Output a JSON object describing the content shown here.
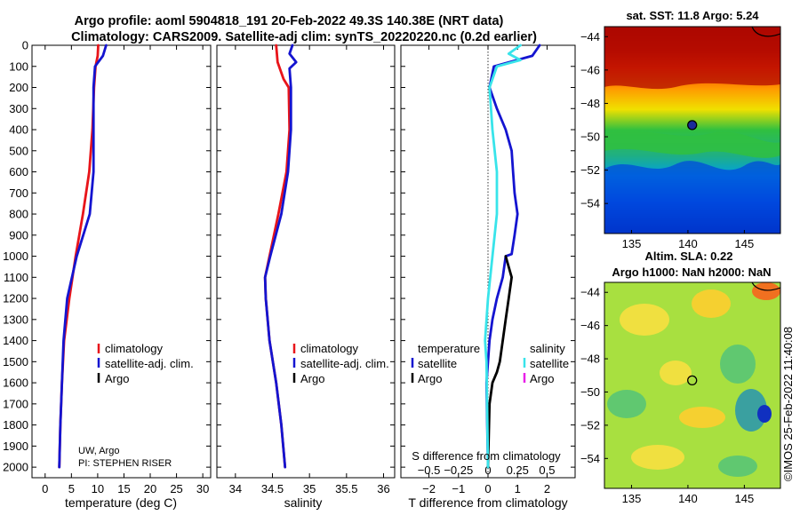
{
  "header": {
    "title1": "Argo profile: aoml 5904818_191 20-Feb-2022 49.3S 140.38E (NRT data)",
    "title2": "Climatology: CARS2009. Satellite-adj clim: synTS_20220220.nc (0.2d earlier)"
  },
  "colors": {
    "climatology": "#e8141a",
    "satellite": "#1414d0",
    "argo": "#000000",
    "sat_salinity": "#38e4ea",
    "argo_salinity": "#e820e8"
  },
  "chart_data": [
    {
      "type": "line",
      "title": "",
      "xlabel": "temperature (deg C)",
      "ylabel": "",
      "xlim": [
        -2.5,
        31.5
      ],
      "ylim": [
        2050,
        0
      ],
      "xticks": [
        0,
        5,
        10,
        15,
        20,
        25,
        30
      ],
      "yticks": [
        0,
        100,
        200,
        300,
        400,
        500,
        600,
        700,
        800,
        900,
        1000,
        1100,
        1200,
        1300,
        1400,
        1500,
        1600,
        1700,
        1800,
        1900,
        2000
      ],
      "legend": [
        "climatology",
        "satellite-adj. clim.",
        "Argo"
      ],
      "credit": [
        "UW, Argo",
        "PI: STEPHEN RISER"
      ],
      "series": [
        {
          "name": "climatology",
          "color": "#e8141a",
          "points": [
            [
              10.1,
              0
            ],
            [
              10.0,
              50
            ],
            [
              9.6,
              100
            ],
            [
              9.3,
              200
            ],
            [
              9.0,
              400
            ],
            [
              8.4,
              600
            ],
            [
              7.2,
              800
            ],
            [
              5.8,
              1000
            ],
            [
              4.6,
              1200
            ],
            [
              3.6,
              1400
            ],
            [
              3.2,
              1600
            ],
            [
              2.9,
              1800
            ],
            [
              2.7,
              2000
            ]
          ]
        },
        {
          "name": "satellite-adj. clim.",
          "color": "#1414d0",
          "points": [
            [
              11.6,
              0
            ],
            [
              11.0,
              50
            ],
            [
              9.5,
              100
            ],
            [
              9.2,
              200
            ],
            [
              9.2,
              400
            ],
            [
              9.2,
              600
            ],
            [
              8.5,
              800
            ],
            [
              6.0,
              1000
            ],
            [
              4.2,
              1200
            ],
            [
              3.5,
              1400
            ],
            [
              3.2,
              1600
            ],
            [
              2.9,
              1800
            ],
            [
              2.7,
              2000
            ]
          ]
        },
        {
          "name": "Argo",
          "color": "#000000",
          "points": []
        }
      ]
    },
    {
      "type": "line",
      "xlabel": "salinity",
      "xlim": [
        33.75,
        36.15
      ],
      "ylim": [
        2050,
        0
      ],
      "xticks": [
        34,
        34.5,
        35,
        35.5,
        36
      ],
      "legend": [
        "climatology",
        "satellite-adj. clim.",
        "Argo"
      ],
      "series": [
        {
          "name": "climatology",
          "color": "#e8141a",
          "points": [
            [
              34.55,
              0
            ],
            [
              34.57,
              80
            ],
            [
              34.65,
              160
            ],
            [
              34.72,
              200
            ],
            [
              34.73,
              400
            ],
            [
              34.69,
              600
            ],
            [
              34.58,
              800
            ],
            [
              34.46,
              1000
            ],
            [
              34.4,
              1100
            ],
            [
              34.41,
              1200
            ],
            [
              34.46,
              1400
            ],
            [
              34.55,
              1600
            ],
            [
              34.62,
              1800
            ],
            [
              34.67,
              2000
            ]
          ]
        },
        {
          "name": "satellite-adj. clim.",
          "color": "#1414d0",
          "points": [
            [
              34.77,
              0
            ],
            [
              34.73,
              40
            ],
            [
              34.82,
              80
            ],
            [
              34.73,
              110
            ],
            [
              34.75,
              200
            ],
            [
              34.75,
              400
            ],
            [
              34.71,
              600
            ],
            [
              34.62,
              800
            ],
            [
              34.47,
              1000
            ],
            [
              34.4,
              1100
            ],
            [
              34.41,
              1200
            ],
            [
              34.46,
              1400
            ],
            [
              34.55,
              1600
            ],
            [
              34.62,
              1800
            ],
            [
              34.67,
              2000
            ]
          ]
        },
        {
          "name": "Argo",
          "color": "#000000",
          "points": []
        }
      ]
    },
    {
      "type": "line",
      "xlabel": "T difference from climatology",
      "xlabel_top": "S difference from climatology",
      "xlim": [
        -2.95,
        2.95
      ],
      "ylim": [
        2050,
        0
      ],
      "xticks": [
        -2,
        -1,
        0,
        1,
        2
      ],
      "xticks_top": [
        -0.5,
        -0.25,
        0,
        0.25,
        0.5
      ],
      "legend_groups": [
        {
          "title": "temperature",
          "items": [
            "satellite",
            "Argo"
          ]
        },
        {
          "title": "salinity",
          "items": [
            "satellite",
            "Argo"
          ]
        }
      ],
      "series": [
        {
          "name": "temperature satellite",
          "color": "#1414d0",
          "points": [
            [
              1.75,
              0
            ],
            [
              1.5,
              50
            ],
            [
              0.2,
              100
            ],
            [
              0.05,
              200
            ],
            [
              0.3,
              300
            ],
            [
              0.6,
              400
            ],
            [
              0.8,
              500
            ],
            [
              0.85,
              600
            ],
            [
              0.9,
              700
            ],
            [
              1.0,
              800
            ],
            [
              0.9,
              900
            ],
            [
              0.8,
              990
            ],
            [
              0.6,
              1000
            ],
            [
              0.5,
              1100
            ],
            [
              0.3,
              1200
            ],
            [
              0.15,
              1300
            ],
            [
              0.05,
              1400
            ],
            [
              0.0,
              1500
            ],
            [
              -0.05,
              1600
            ],
            [
              0.0,
              2000
            ]
          ]
        },
        {
          "name": "temperature Argo",
          "color": "#000000",
          "points": [
            [
              0.6,
              1000
            ],
            [
              0.8,
              1100
            ],
            [
              0.7,
              1200
            ],
            [
              0.6,
              1300
            ],
            [
              0.5,
              1400
            ],
            [
              0.4,
              1500
            ],
            [
              0.3,
              1550
            ],
            [
              0.15,
              1600
            ],
            [
              0.05,
              1700
            ],
            [
              0.0,
              2000
            ]
          ]
        },
        {
          "name": "salinity satellite",
          "color": "#38e4ea",
          "points": [
            [
              1.1,
              0
            ],
            [
              0.7,
              40
            ],
            [
              1.1,
              70
            ],
            [
              0.3,
              100
            ],
            [
              0.05,
              200
            ],
            [
              0.15,
              400
            ],
            [
              0.3,
              600
            ],
            [
              0.3,
              800
            ],
            [
              0.15,
              1000
            ],
            [
              0.0,
              1200
            ],
            [
              -0.1,
              1400
            ],
            [
              -0.05,
              1500
            ],
            [
              0.0,
              2000
            ]
          ]
        },
        {
          "name": "salinity Argo",
          "color": "#e820e8",
          "points": []
        }
      ]
    },
    {
      "type": "heatmap",
      "title": "sat. SST: 11.8 Argo: 5.24",
      "xlim": [
        132.6,
        148.2
      ],
      "ylim": [
        -55.8,
        -43.4
      ],
      "xticks": [
        135,
        140,
        145
      ],
      "yticks": [
        -44,
        -46,
        -48,
        -50,
        -52,
        -54
      ],
      "marker": [
        140.38,
        -49.3
      ]
    },
    {
      "type": "heatmap",
      "title": "Altim. SLA: 0.22",
      "subtitle": "Argo h1000: NaN h2000: NaN",
      "xlim": [
        132.6,
        148.2
      ],
      "ylim": [
        -55.8,
        -43.4
      ],
      "xticks": [
        135,
        140,
        145
      ],
      "yticks": [
        -44,
        -46,
        -48,
        -50,
        -52,
        -54
      ],
      "marker": [
        140.38,
        -49.3
      ]
    }
  ],
  "footer": {
    "timestamp": "©IMOS 25-Feb-2022 11:40:08"
  }
}
